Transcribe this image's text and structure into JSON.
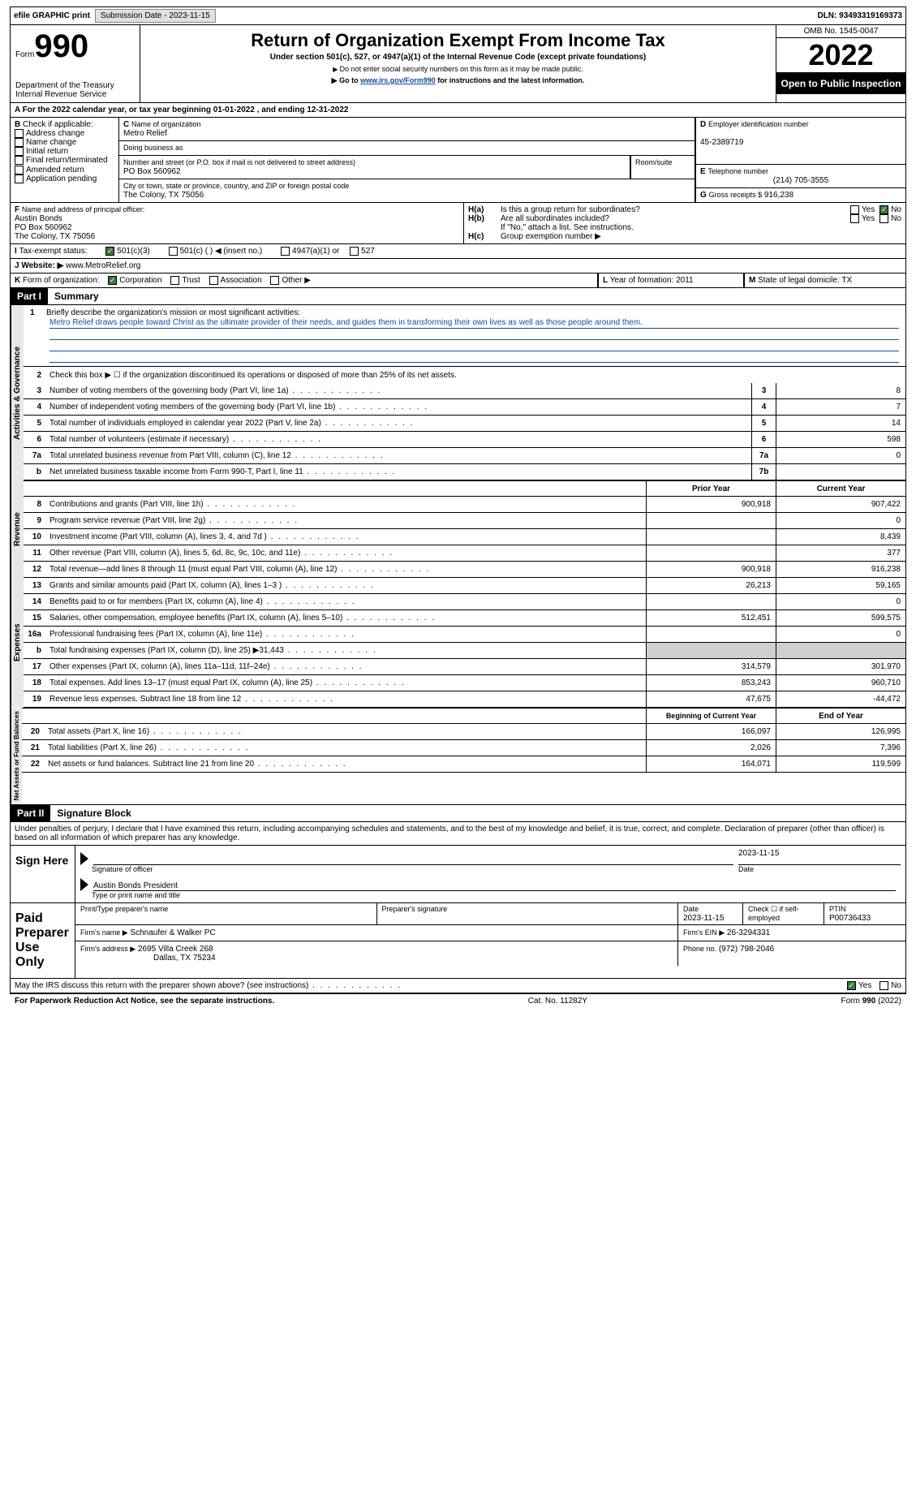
{
  "topbar": {
    "efile": "efile GRAPHIC print",
    "submission_label": "Submission Date - 2023-11-15",
    "dln_label": "DLN: 93493319169373"
  },
  "header": {
    "form_word": "Form",
    "form_num": "990",
    "dept": "Department of the Treasury",
    "irs": "Internal Revenue Service",
    "title": "Return of Organization Exempt From Income Tax",
    "subtitle": "Under section 501(c), 527, or 4947(a)(1) of the Internal Revenue Code (except private foundations)",
    "note1": "Do not enter social security numbers on this form as it may be made public.",
    "note2_pre": "Go to ",
    "note2_link": "www.irs.gov/Form990",
    "note2_post": " for instructions and the latest information.",
    "omb": "OMB No. 1545-0047",
    "year": "2022",
    "open": "Open to Public Inspection"
  },
  "a": {
    "text": "For the 2022 calendar year, or tax year beginning 01-01-2022   , and ending 12-31-2022"
  },
  "b": {
    "label": "Check if applicable:",
    "items": [
      "Address change",
      "Name change",
      "Initial return",
      "Final return/terminated",
      "Amended return",
      "Application pending"
    ]
  },
  "c": {
    "name_label": "Name of organization",
    "name": "Metro Relief",
    "dba_label": "Doing business as",
    "street_label": "Number and street (or P.O. box if mail is not delivered to street address)",
    "room_label": "Room/suite",
    "street": "PO Box 560962",
    "city_label": "City or town, state or province, country, and ZIP or foreign postal code",
    "city": "The Colony, TX  75056"
  },
  "d": {
    "label": "Employer identification number",
    "value": "45-2389719"
  },
  "e": {
    "label": "Telephone number",
    "value": "(214) 705-3555"
  },
  "g": {
    "label": "Gross receipts $",
    "value": "916,238"
  },
  "f": {
    "label": "Name and address of principal officer:",
    "name": "Austin Bonds",
    "addr1": "PO Box 560962",
    "addr2": "The Colony, TX  75056"
  },
  "h": {
    "a": "Is this a group return for subordinates?",
    "b": "Are all subordinates included?",
    "b_note": "If \"No,\" attach a list. See instructions.",
    "c": "Group exemption number ▶",
    "yes": "Yes",
    "no": "No"
  },
  "i": {
    "label": "Tax-exempt status:",
    "opts": [
      "501(c)(3)",
      "501(c) (  ) ◀ (insert no.)",
      "4947(a)(1) or",
      "527"
    ]
  },
  "j": {
    "label": "Website: ▶",
    "value": "www.MetroRelief.org"
  },
  "k": {
    "label": "Form of organization:",
    "opts": [
      "Corporation",
      "Trust",
      "Association",
      "Other ▶"
    ]
  },
  "l": {
    "label": "Year of formation:",
    "value": "2011"
  },
  "m": {
    "label": "State of legal domicile:",
    "value": "TX"
  },
  "part1": {
    "tag": "Part I",
    "title": "Summary",
    "q1_label": "Briefly describe the organization's mission or most significant activities:",
    "q1_text": "Metro Relief draws people toward Christ as the ultimate provider of their needs, and guides them in transforming their own lives as well as those people around them.",
    "q2": "Check this box ▶ ☐ if the organization discontinued its operations or disposed of more than 25% of its net assets.",
    "lines_gov": [
      {
        "n": "3",
        "d": "Number of voting members of the governing body (Part VI, line 1a)",
        "box": "3",
        "v": "8"
      },
      {
        "n": "4",
        "d": "Number of independent voting members of the governing body (Part VI, line 1b)",
        "box": "4",
        "v": "7"
      },
      {
        "n": "5",
        "d": "Total number of individuals employed in calendar year 2022 (Part V, line 2a)",
        "box": "5",
        "v": "14"
      },
      {
        "n": "6",
        "d": "Total number of volunteers (estimate if necessary)",
        "box": "6",
        "v": "598"
      },
      {
        "n": "7a",
        "d": "Total unrelated business revenue from Part VIII, column (C), line 12",
        "box": "7a",
        "v": "0"
      },
      {
        "n": "b",
        "d": "Net unrelated business taxable income from Form 990-T, Part I, line 11",
        "box": "7b",
        "v": ""
      }
    ],
    "col_prior": "Prior Year",
    "col_current": "Current Year",
    "lines_rev": [
      {
        "n": "8",
        "d": "Contributions and grants (Part VIII, line 1h)",
        "p": "900,918",
        "c": "907,422"
      },
      {
        "n": "9",
        "d": "Program service revenue (Part VIII, line 2g)",
        "p": "",
        "c": "0"
      },
      {
        "n": "10",
        "d": "Investment income (Part VIII, column (A), lines 3, 4, and 7d )",
        "p": "",
        "c": "8,439"
      },
      {
        "n": "11",
        "d": "Other revenue (Part VIII, column (A), lines 5, 6d, 8c, 9c, 10c, and 11e)",
        "p": "",
        "c": "377"
      },
      {
        "n": "12",
        "d": "Total revenue—add lines 8 through 11 (must equal Part VIII, column (A), line 12)",
        "p": "900,918",
        "c": "916,238"
      }
    ],
    "lines_exp": [
      {
        "n": "13",
        "d": "Grants and similar amounts paid (Part IX, column (A), lines 1–3 )",
        "p": "26,213",
        "c": "59,165"
      },
      {
        "n": "14",
        "d": "Benefits paid to or for members (Part IX, column (A), line 4)",
        "p": "",
        "c": "0"
      },
      {
        "n": "15",
        "d": "Salaries, other compensation, employee benefits (Part IX, column (A), lines 5–10)",
        "p": "512,451",
        "c": "599,575"
      },
      {
        "n": "16a",
        "d": "Professional fundraising fees (Part IX, column (A), line 11e)",
        "p": "",
        "c": "0"
      },
      {
        "n": "b",
        "d": "Total fundraising expenses (Part IX, column (D), line 25) ▶31,443",
        "p": "grey",
        "c": "grey"
      },
      {
        "n": "17",
        "d": "Other expenses (Part IX, column (A), lines 11a–11d, 11f–24e)",
        "p": "314,579",
        "c": "301,970"
      },
      {
        "n": "18",
        "d": "Total expenses. Add lines 13–17 (must equal Part IX, column (A), line 25)",
        "p": "853,243",
        "c": "960,710"
      },
      {
        "n": "19",
        "d": "Revenue less expenses. Subtract line 18 from line 12",
        "p": "47,675",
        "c": "-44,472"
      }
    ],
    "col_begin": "Beginning of Current Year",
    "col_end": "End of Year",
    "lines_net": [
      {
        "n": "20",
        "d": "Total assets (Part X, line 16)",
        "p": "166,097",
        "c": "126,995"
      },
      {
        "n": "21",
        "d": "Total liabilities (Part X, line 26)",
        "p": "2,026",
        "c": "7,396"
      },
      {
        "n": "22",
        "d": "Net assets or fund balances. Subtract line 21 from line 20",
        "p": "164,071",
        "c": "119,599"
      }
    ]
  },
  "part2": {
    "tag": "Part II",
    "title": "Signature Block",
    "decl": "Under penalties of perjury, I declare that I have examined this return, including accompanying schedules and statements, and to the best of my knowledge and belief, it is true, correct, and complete. Declaration of preparer (other than officer) is based on all information of which preparer has any knowledge."
  },
  "sign": {
    "here": "Sign Here",
    "sig_label": "Signature of officer",
    "date": "2023-11-15",
    "date_label": "Date",
    "name": "Austin Bonds  President",
    "name_label": "Type or print name and title"
  },
  "paid": {
    "label": "Paid Preparer Use Only",
    "print_label": "Print/Type preparer's name",
    "sig_label": "Preparer's signature",
    "date_label": "Date",
    "date": "2023-11-15",
    "check_label": "Check ☐ if self-employed",
    "ptin_label": "PTIN",
    "ptin": "P00736433",
    "firm_name_label": "Firm's name    ▶",
    "firm_name": "Schnaufer & Walker PC",
    "firm_ein_label": "Firm's EIN ▶",
    "firm_ein": "26-3294331",
    "firm_addr_label": "Firm's address ▶",
    "firm_addr1": "2695 Villa Creek 268",
    "firm_addr2": "Dallas, TX  75234",
    "phone_label": "Phone no.",
    "phone": "(972) 798-2046"
  },
  "discuss": {
    "text": "May the IRS discuss this return with the preparer shown above? (see instructions)",
    "yes": "Yes",
    "no": "No"
  },
  "footer": {
    "left": "For Paperwork Reduction Act Notice, see the separate instructions.",
    "center": "Cat. No. 11282Y",
    "right": "Form 990 (2022)"
  },
  "vtabs": {
    "gov": "Activities & Governance",
    "rev": "Revenue",
    "exp": "Expenses",
    "net": "Net Assets or Fund Balances"
  }
}
